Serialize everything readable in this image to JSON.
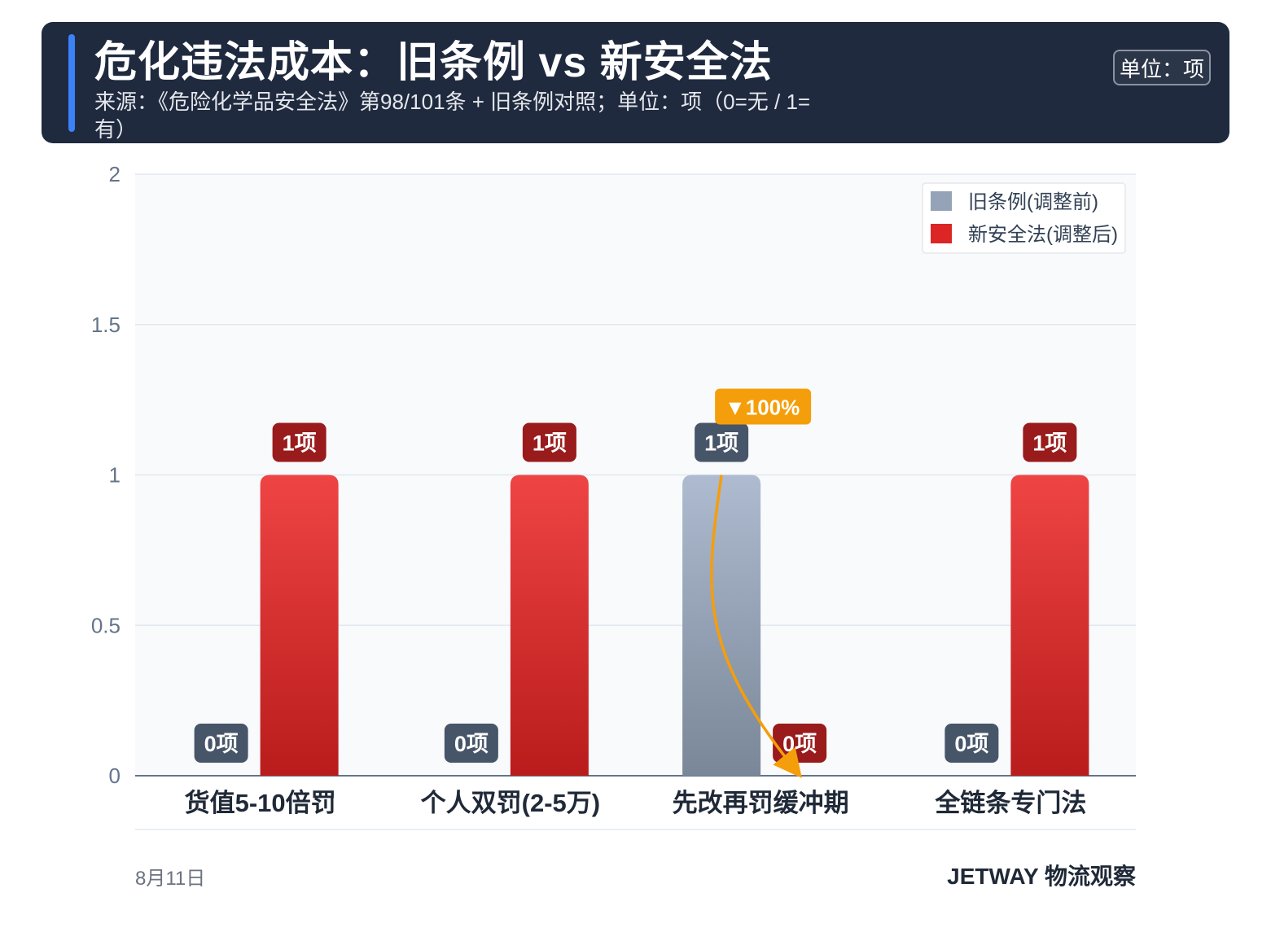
{
  "header": {
    "title": "危化违法成本：旧条例 vs 新安全法",
    "subtitle": "来源：《危险化学品安全法》第98/101条 + 旧条例对照；单位：项（0=无 / 1=有）",
    "unit_badge": "单位：项"
  },
  "footer": {
    "date": "8月11日",
    "brand": "JETWAY 物流观察"
  },
  "colors": {
    "old_bar": "#94a3b8",
    "new_bar": "#dc2626",
    "old_label_bg": "#475569",
    "new_label_bg": "#991b1b",
    "annotation": "#f59e0b"
  },
  "chart_data": {
    "type": "bar",
    "categories": [
      "货值5-10倍罚",
      "个人双罚(2-5万)",
      "先改再罚缓冲期",
      "全链条专门法"
    ],
    "series": [
      {
        "name": "旧条例(调整前)",
        "values": [
          0,
          0,
          1,
          0
        ],
        "labels": [
          "0项",
          "0项",
          "1项",
          "0项"
        ]
      },
      {
        "name": "新安全法(调整后)",
        "values": [
          1,
          1,
          0,
          1
        ],
        "labels": [
          "1项",
          "1项",
          "0项",
          "1项"
        ]
      }
    ],
    "ylim": [
      0,
      2
    ],
    "yticks": [
      0,
      0.5,
      1,
      1.5,
      2
    ],
    "ytick_labels": [
      "0",
      "0.5",
      "1",
      "1.5",
      "2"
    ],
    "xlabel": "",
    "ylabel": "",
    "grid": true,
    "legend_position": "top-right",
    "annotation": {
      "category_index": 2,
      "text": "▼100%"
    }
  }
}
